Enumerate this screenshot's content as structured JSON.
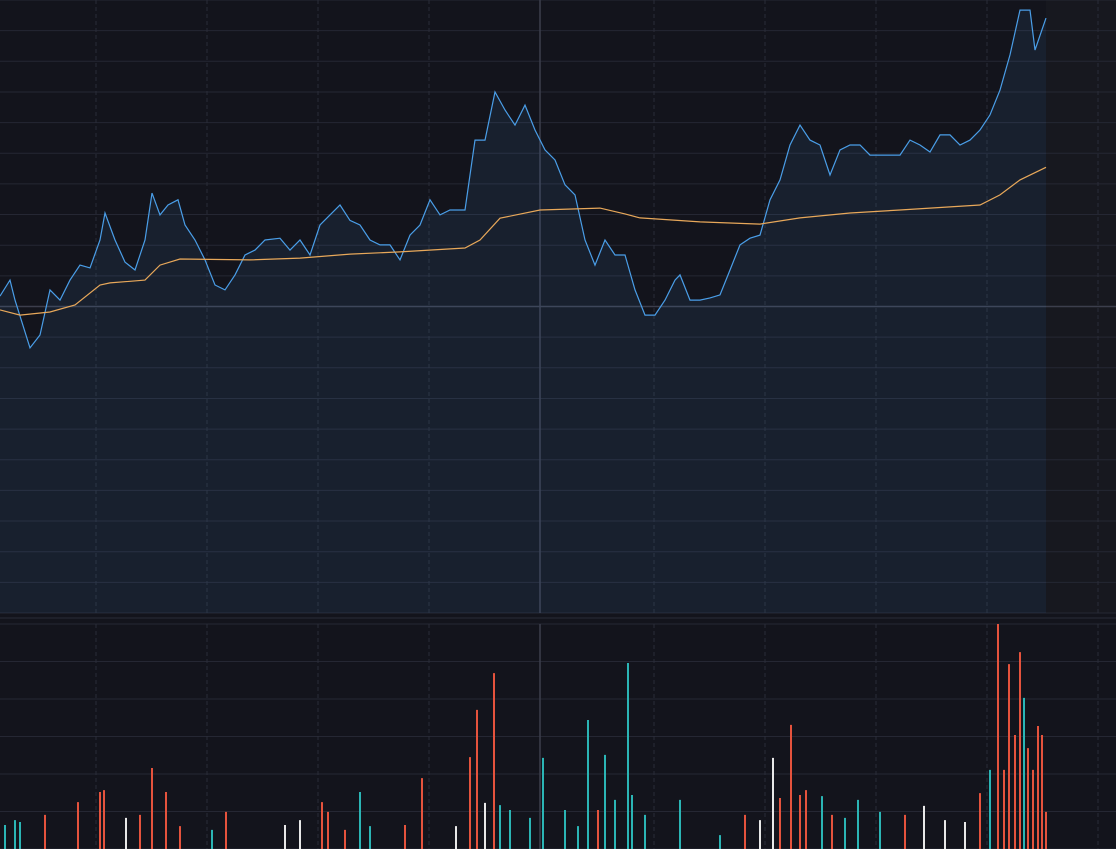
{
  "chart_data": [
    {
      "type": "line",
      "xlim": [
        0,
        1116
      ],
      "xticks": [
        96,
        207,
        318,
        429,
        540,
        654,
        765,
        876,
        987,
        1098
      ],
      "ylim": [
        0,
        20
      ],
      "yticks": [
        0,
        1,
        2,
        3,
        4,
        5,
        6,
        7,
        8,
        9,
        10,
        11,
        12,
        13,
        14,
        15,
        16,
        17,
        18,
        19,
        20
      ],
      "grid": true,
      "reference_x": 540,
      "reference_y": 10,
      "series": [
        {
          "color": "#4a9ee8",
          "fill": true,
          "x": [
            0,
            10,
            15,
            30,
            40,
            50,
            60,
            70,
            80,
            90,
            100,
            105,
            115,
            125,
            135,
            145,
            152,
            160,
            168,
            178,
            185,
            195,
            205,
            215,
            225,
            235,
            245,
            255,
            265,
            280,
            290,
            300,
            310,
            320,
            330,
            340,
            350,
            360,
            370,
            380,
            390,
            400,
            410,
            420,
            430,
            440,
            450,
            465,
            475,
            485,
            495,
            505,
            515,
            525,
            535,
            545,
            555,
            565,
            575,
            585,
            595,
            605,
            615,
            625,
            635,
            645,
            655,
            665,
            675,
            680,
            690,
            700,
            710,
            720,
            730,
            740,
            750,
            760,
            770,
            780,
            790,
            800,
            810,
            820,
            830,
            840,
            850,
            860,
            870,
            880,
            890,
            900,
            910,
            920,
            930,
            940,
            950,
            960,
            970,
            980,
            990,
            1000,
            1010,
            1020,
            1030,
            1035,
            1046
          ],
          "values": [
            10.34,
            10.86,
            10.21,
            8.65,
            9.07,
            10.54,
            10.21,
            10.86,
            11.35,
            11.26,
            12.17,
            13.05,
            12.17,
            11.45,
            11.19,
            12.17,
            13.7,
            12.99,
            13.31,
            13.48,
            12.66,
            12.17,
            11.52,
            10.7,
            10.54,
            11.03,
            11.68,
            11.84,
            12.17,
            12.23,
            11.84,
            12.17,
            11.68,
            12.66,
            12.99,
            13.31,
            12.81,
            12.66,
            12.17,
            12.01,
            12.01,
            11.52,
            12.33,
            12.66,
            13.48,
            12.99,
            13.15,
            13.15,
            15.43,
            15.43,
            17.0,
            16.41,
            15.92,
            16.57,
            15.76,
            15.11,
            14.78,
            13.97,
            13.64,
            12.17,
            11.35,
            12.17,
            11.68,
            11.68,
            10.54,
            9.72,
            9.72,
            10.21,
            10.86,
            11.03,
            10.21,
            10.21,
            10.28,
            10.38,
            11.19,
            12.01,
            12.23,
            12.33,
            13.48,
            14.13,
            15.27,
            15.92,
            15.43,
            15.27,
            14.29,
            15.11,
            15.27,
            15.27,
            14.94,
            14.94,
            14.94,
            14.94,
            15.43,
            15.27,
            15.04,
            15.6,
            15.6,
            15.27,
            15.43,
            15.76,
            16.25,
            17.06,
            18.21,
            19.67,
            19.67,
            18.37,
            19.41
          ]
        },
        {
          "color": "#e8a85a",
          "fill": false,
          "x": [
            0,
            20,
            50,
            75,
            100,
            110,
            145,
            160,
            180,
            250,
            300,
            350,
            400,
            465,
            480,
            500,
            540,
            600,
            625,
            640,
            700,
            760,
            800,
            850,
            900,
            980,
            1000,
            1020,
            1046
          ],
          "values": [
            9.89,
            9.72,
            9.82,
            10.05,
            10.7,
            10.77,
            10.86,
            11.35,
            11.55,
            11.52,
            11.58,
            11.71,
            11.78,
            11.91,
            12.17,
            12.88,
            13.15,
            13.21,
            13.02,
            12.89,
            12.76,
            12.69,
            12.89,
            13.05,
            13.15,
            13.31,
            13.64,
            14.13,
            14.54
          ]
        }
      ]
    },
    {
      "type": "bar",
      "xlim": [
        0,
        1116
      ],
      "xticks": [
        96,
        207,
        318,
        429,
        540,
        654,
        765,
        876,
        987,
        1098
      ],
      "ylim": [
        0,
        6
      ],
      "yticks": [
        0,
        1,
        2,
        3,
        4,
        5,
        6
      ],
      "grid": true,
      "reference_x": 540,
      "x": [
        5,
        15,
        20,
        45,
        78,
        100,
        104,
        126,
        140,
        152,
        166,
        180,
        212,
        226,
        285,
        300,
        322,
        328,
        345,
        360,
        370,
        405,
        422,
        456,
        470,
        477,
        485,
        494,
        500,
        510,
        530,
        543,
        565,
        578,
        588,
        598,
        605,
        615,
        628,
        632,
        645,
        680,
        720,
        745,
        760,
        773,
        780,
        791,
        800,
        806,
        822,
        832,
        845,
        858,
        880,
        905,
        924,
        945,
        965,
        980,
        990,
        998,
        1004,
        1009,
        1015,
        1020,
        1024,
        1028,
        1033,
        1038,
        1042,
        1046
      ],
      "values": [
        0.64,
        0.77,
        0.72,
        0.91,
        1.25,
        1.52,
        1.57,
        0.83,
        0.91,
        2.16,
        1.52,
        0.61,
        0.51,
        0.99,
        0.64,
        0.77,
        1.25,
        0.99,
        0.51,
        1.52,
        0.61,
        0.64,
        1.89,
        0.61,
        2.45,
        3.71,
        1.23,
        4.69,
        1.17,
        1.04,
        0.83,
        2.43,
        1.04,
        0.61,
        3.44,
        1.04,
        2.51,
        1.31,
        4.96,
        1.44,
        0.91,
        1.31,
        0.37,
        0.91,
        0.77,
        2.43,
        1.36,
        3.31,
        1.44,
        1.57,
        1.41,
        0.91,
        0.83,
        1.31,
        0.99,
        0.91,
        1.15,
        0.77,
        0.72,
        1.49,
        2.11,
        6.0,
        2.11,
        4.93,
        3.04,
        5.25,
        4.03,
        2.69,
        2.11,
        3.28,
        3.04,
        0.99
      ],
      "colors": [
        "#2bb5b5",
        "#2bb5b5",
        "#2bb5b5",
        "#e5533d",
        "#e5533d",
        "#e5533d",
        "#e5533d",
        "#e8e8e8",
        "#e5533d",
        "#e5533d",
        "#e5533d",
        "#e5533d",
        "#2bb5b5",
        "#e5533d",
        "#e8e8e8",
        "#e8e8e8",
        "#e5533d",
        "#e5533d",
        "#e5533d",
        "#2bb5b5",
        "#2bb5b5",
        "#e5533d",
        "#e5533d",
        "#e8e8e8",
        "#e5533d",
        "#e5533d",
        "#e8e8e8",
        "#e5533d",
        "#2bb5b5",
        "#2bb5b5",
        "#2bb5b5",
        "#2bb5b5",
        "#2bb5b5",
        "#2bb5b5",
        "#2bb5b5",
        "#e5533d",
        "#2bb5b5",
        "#2bb5b5",
        "#2bb5b5",
        "#2bb5b5",
        "#2bb5b5",
        "#2bb5b5",
        "#2bb5b5",
        "#e5533d",
        "#e8e8e8",
        "#e8e8e8",
        "#e5533d",
        "#e5533d",
        "#e5533d",
        "#e5533d",
        "#2bb5b5",
        "#e5533d",
        "#2bb5b5",
        "#2bb5b5",
        "#2bb5b5",
        "#e5533d",
        "#e8e8e8",
        "#e8e8e8",
        "#e8e8e8",
        "#e5533d",
        "#2bb5b5",
        "#e5533d",
        "#e5533d",
        "#e5533d",
        "#e5533d",
        "#e5533d",
        "#2bb5b5",
        "#e5533d",
        "#e5533d",
        "#e5533d",
        "#e5533d",
        "#e5533d"
      ]
    }
  ]
}
